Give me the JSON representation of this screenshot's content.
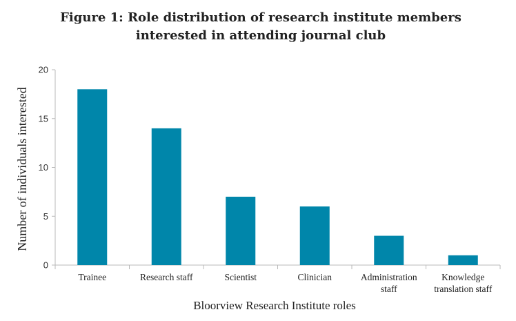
{
  "chart_data": {
    "type": "bar",
    "title_lines": [
      "Figure 1: Role distribution of research institute members",
      "interested in attending journal club"
    ],
    "xlabel": "Bloorview Research Institute roles",
    "ylabel": "Number of individuals interested",
    "categories": [
      [
        "Trainee"
      ],
      [
        "Research staff"
      ],
      [
        "Scientist"
      ],
      [
        "Clinician"
      ],
      [
        "Administration",
        "staff"
      ],
      [
        "Knowledge",
        "translation staff"
      ]
    ],
    "values": [
      18,
      14,
      7,
      6,
      3,
      1
    ],
    "ylim": [
      0,
      20
    ],
    "yticks": [
      0,
      5,
      10,
      15,
      20
    ],
    "bar_color": "#0086aa",
    "grid": false,
    "legend": "none"
  }
}
